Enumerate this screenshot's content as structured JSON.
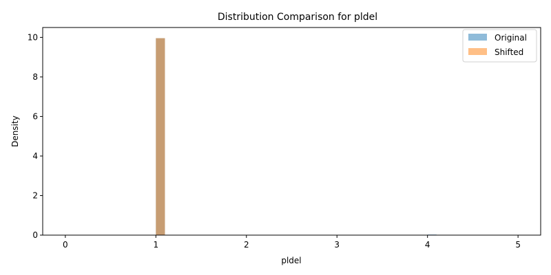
{
  "chart_data": {
    "type": "bar",
    "title": "Distribution Comparison for pldel",
    "xlabel": "pldel",
    "ylabel": "Density",
    "xlim": [
      -0.25,
      5.25
    ],
    "ylim": [
      0,
      10.5
    ],
    "xticks": [
      0,
      1,
      2,
      3,
      4,
      5
    ],
    "yticks": [
      0,
      2,
      4,
      6,
      8,
      10
    ],
    "bin_width": 0.1,
    "grid": false,
    "legend_position": "top-right",
    "series": [
      {
        "name": "Original",
        "color": "#1f77b4",
        "opacity": 0.5,
        "bins": [
          {
            "x0": 1.0,
            "x1": 1.1,
            "value": 9.96
          },
          {
            "x0": 4.0,
            "x1": 4.1,
            "value": 0.03
          }
        ]
      },
      {
        "name": "Shifted",
        "color": "#ff7f0e",
        "opacity": 0.5,
        "bins": [
          {
            "x0": 1.0,
            "x1": 1.1,
            "value": 9.96
          },
          {
            "x0": 4.0,
            "x1": 4.1,
            "value": 0.01
          }
        ]
      }
    ]
  }
}
